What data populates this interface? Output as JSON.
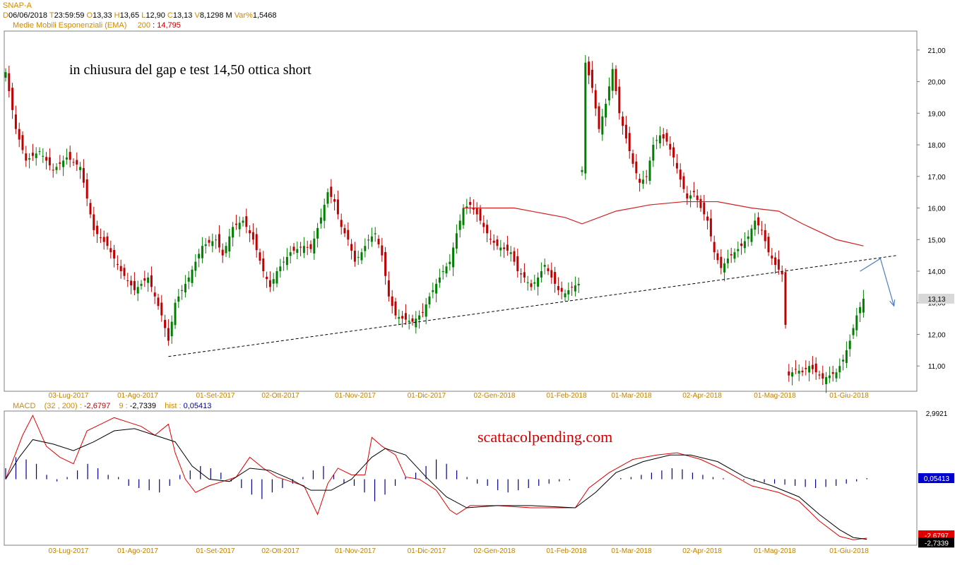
{
  "header": {
    "symbol": "SNAP-A",
    "d_label": "D",
    "date": "06/06/2018",
    "t_label": "T",
    "time": "23:59:59",
    "o_label": "O",
    "open": "13,33",
    "h_label": "H",
    "high": "13,65",
    "l_label": "L",
    "low": "12,90",
    "c_label": "C",
    "close": "13,13",
    "v_label": "V",
    "volume": "8,1298 M",
    "var_label": "Var%",
    "var": "1,5468",
    "ema_label": "Medie Mobili Esponenziali (EMA)",
    "ema_period": "200",
    "ema_value": "14,795"
  },
  "macd_header": {
    "label": "MACD",
    "params": "(32 , 200) :",
    "macd_value": "-2,6797",
    "signal_label": "9 :",
    "signal_value": "-2,7339",
    "hist_label": "hist :",
    "hist_value": "0,05413"
  },
  "annotations": {
    "main_text": "in chiusura del gap e test 14,50 ottica short",
    "watermark": "scattacolpending.com"
  },
  "colors": {
    "candle_up": "#008000",
    "candle_down": "#c00000",
    "ema": "#d02020",
    "macd_line": "#e00000",
    "signal_line": "#000000",
    "histogram": "#00008b",
    "trendline": "#000000",
    "arrow": "#4a7fc0",
    "axis_label": "#c08000"
  },
  "chart_data": [
    {
      "type": "candlestick",
      "title": "SNAP-A",
      "x_labels": [
        "03-Lug-2017",
        "01-Ago-2017",
        "01-Set-2017",
        "02-Ott-2017",
        "01-Nov-2017",
        "01-Dic-2017",
        "02-Gen-2018",
        "01-Feb-2018",
        "01-Mar-2018",
        "02-Apr-2018",
        "01-Mag-2018",
        "01-Giu-2018"
      ],
      "y_ticks": [
        "11,00",
        "12,00",
        "13,00",
        "14,00",
        "15,00",
        "16,00",
        "17,00",
        "18,00",
        "19,00",
        "20,00",
        "21,00"
      ],
      "ylim": [
        10.2,
        21.6
      ],
      "last_price_label": "13,13",
      "close_series": {
        "name": "close",
        "points": [
          [
            0,
            20.3
          ],
          [
            3,
            18.5
          ],
          [
            6,
            17.5
          ],
          [
            10,
            17.8
          ],
          [
            14,
            17.2
          ],
          [
            18,
            17.6
          ],
          [
            22,
            17.3
          ],
          [
            26,
            15.3
          ],
          [
            30,
            14.8
          ],
          [
            34,
            14.0
          ],
          [
            38,
            13.4
          ],
          [
            42,
            13.8
          ],
          [
            46,
            12.6
          ],
          [
            48,
            11.8
          ],
          [
            50,
            13.0
          ],
          [
            54,
            13.8
          ],
          [
            58,
            14.8
          ],
          [
            62,
            15.0
          ],
          [
            64,
            14.5
          ],
          [
            67,
            15.4
          ],
          [
            70,
            15.6
          ],
          [
            73,
            15.0
          ],
          [
            76,
            14.0
          ],
          [
            78,
            13.5
          ],
          [
            80,
            14.0
          ],
          [
            84,
            14.6
          ],
          [
            88,
            14.8
          ],
          [
            90,
            14.7
          ],
          [
            93,
            15.7
          ],
          [
            95,
            16.5
          ],
          [
            97,
            16.2
          ],
          [
            99,
            15.4
          ],
          [
            101,
            15.0
          ],
          [
            103,
            14.3
          ],
          [
            105,
            14.6
          ],
          [
            107,
            15.0
          ],
          [
            109,
            15.2
          ],
          [
            111,
            14.5
          ],
          [
            113,
            13.2
          ],
          [
            115,
            12.6
          ],
          [
            117,
            12.5
          ],
          [
            120,
            12.4
          ],
          [
            123,
            12.7
          ],
          [
            125,
            13.2
          ],
          [
            127,
            13.6
          ],
          [
            129,
            14.0
          ],
          [
            131,
            14.3
          ],
          [
            133,
            15.2
          ],
          [
            135,
            16.0
          ],
          [
            137,
            16.1
          ],
          [
            139,
            15.8
          ],
          [
            141,
            15.4
          ],
          [
            143,
            15.0
          ],
          [
            145,
            14.8
          ],
          [
            147,
            14.7
          ],
          [
            149,
            14.6
          ],
          [
            151,
            14.0
          ],
          [
            153,
            13.8
          ],
          [
            155,
            13.5
          ],
          [
            157,
            13.8
          ],
          [
            159,
            14.2
          ],
          [
            161,
            13.8
          ],
          [
            163,
            13.4
          ],
          [
            165,
            13.3
          ],
          [
            167,
            13.5
          ],
          [
            169,
            13.6
          ],
          [
            170,
            17.2
          ],
          [
            171,
            20.6
          ],
          [
            173,
            19.8
          ],
          [
            175,
            18.5
          ],
          [
            177,
            19.3
          ],
          [
            179,
            20.4
          ],
          [
            181,
            19.0
          ],
          [
            183,
            18.2
          ],
          [
            185,
            17.4
          ],
          [
            187,
            16.8
          ],
          [
            189,
            17.0
          ],
          [
            191,
            18.0
          ],
          [
            193,
            18.3
          ],
          [
            195,
            18.1
          ],
          [
            197,
            17.6
          ],
          [
            199,
            16.9
          ],
          [
            201,
            16.3
          ],
          [
            203,
            16.5
          ],
          [
            205,
            16.0
          ],
          [
            207,
            15.6
          ],
          [
            209,
            14.6
          ],
          [
            211,
            14.1
          ],
          [
            213,
            14.4
          ],
          [
            215,
            14.6
          ],
          [
            217,
            14.8
          ],
          [
            219,
            15.1
          ],
          [
            221,
            15.6
          ],
          [
            223,
            15.3
          ],
          [
            225,
            14.6
          ],
          [
            227,
            14.2
          ],
          [
            229,
            13.9
          ],
          [
            231,
            10.7
          ],
          [
            233,
            10.9
          ],
          [
            235,
            10.8
          ],
          [
            237,
            11.0
          ],
          [
            239,
            10.8
          ],
          [
            241,
            10.6
          ],
          [
            243,
            10.7
          ],
          [
            245,
            10.8
          ],
          [
            247,
            11.2
          ],
          [
            249,
            11.8
          ],
          [
            251,
            12.6
          ],
          [
            253,
            13.13
          ]
        ]
      },
      "ema_series": {
        "name": "EMA 200",
        "points": [
          [
            135,
            16.0
          ],
          [
            150,
            16.0
          ],
          [
            165,
            15.7
          ],
          [
            170,
            15.5
          ],
          [
            180,
            15.9
          ],
          [
            190,
            16.1
          ],
          [
            200,
            16.2
          ],
          [
            210,
            16.2
          ],
          [
            220,
            16.0
          ],
          [
            228,
            15.9
          ],
          [
            235,
            15.5
          ],
          [
            245,
            15.0
          ],
          [
            253,
            14.8
          ]
        ]
      },
      "trendline": {
        "from": [
          48,
          11.3
        ],
        "to": [
          263,
          14.5
        ]
      },
      "arrow": {
        "from": [
          256,
          14.4
        ],
        "peak": [
          258,
          14.4
        ],
        "to": [
          262,
          12.9
        ]
      }
    },
    {
      "type": "line",
      "title": "MACD",
      "y_ticks": [
        "2,9921"
      ],
      "value_labels": [
        "0,05413",
        "-2,6797",
        "-2,7339"
      ],
      "ylim": [
        -3.0,
        3.1
      ],
      "series": [
        {
          "name": "MACD",
          "points": [
            [
              0,
              0
            ],
            [
              5,
              2.0
            ],
            [
              8,
              2.9
            ],
            [
              12,
              1.5
            ],
            [
              16,
              1.0
            ],
            [
              20,
              0.7
            ],
            [
              24,
              2.2
            ],
            [
              28,
              2.5
            ],
            [
              32,
              2.8
            ],
            [
              36,
              2.6
            ],
            [
              40,
              2.4
            ],
            [
              44,
              2.0
            ],
            [
              48,
              2.5
            ],
            [
              50,
              1.2
            ],
            [
              53,
              0
            ],
            [
              56,
              -0.6
            ],
            [
              60,
              -0.3
            ],
            [
              64,
              -0.1
            ],
            [
              68,
              0.1
            ],
            [
              72,
              1.0
            ],
            [
              76,
              0.5
            ],
            [
              80,
              0.1
            ],
            [
              84,
              -0.1
            ],
            [
              88,
              -0.3
            ],
            [
              92,
              -1.6
            ],
            [
              95,
              -0.2
            ],
            [
              98,
              0.5
            ],
            [
              102,
              0.2
            ],
            [
              106,
              0.2
            ],
            [
              108,
              1.9
            ],
            [
              111,
              1.5
            ],
            [
              115,
              1.1
            ],
            [
              118,
              0.1
            ],
            [
              122,
              0
            ],
            [
              127,
              -0.5
            ],
            [
              131,
              -1.4
            ],
            [
              133,
              -1.6
            ],
            [
              137,
              -1.2
            ],
            [
              145,
              -1.2
            ],
            [
              155,
              -1.3
            ],
            [
              168,
              -1.3
            ],
            [
              172,
              -0.4
            ],
            [
              178,
              0.3
            ],
            [
              185,
              0.9
            ],
            [
              192,
              1.1
            ],
            [
              198,
              1.2
            ],
            [
              205,
              0.9
            ],
            [
              212,
              0.4
            ],
            [
              220,
              -0.3
            ],
            [
              228,
              -0.6
            ],
            [
              234,
              -1.0
            ],
            [
              240,
              -1.9
            ],
            [
              246,
              -2.6
            ],
            [
              250,
              -2.75
            ],
            [
              254,
              -2.68
            ]
          ]
        },
        {
          "name": "Signal",
          "points": [
            [
              0,
              0
            ],
            [
              4,
              1.0
            ],
            [
              8,
              1.8
            ],
            [
              14,
              1.6
            ],
            [
              20,
              1.3
            ],
            [
              26,
              1.7
            ],
            [
              32,
              2.2
            ],
            [
              38,
              2.3
            ],
            [
              44,
              2.0
            ],
            [
              50,
              1.7
            ],
            [
              55,
              0.6
            ],
            [
              60,
              0
            ],
            [
              66,
              -0.1
            ],
            [
              72,
              0.5
            ],
            [
              78,
              0.4
            ],
            [
              84,
              0
            ],
            [
              90,
              -0.5
            ],
            [
              96,
              -0.5
            ],
            [
              102,
              0
            ],
            [
              108,
              1.0
            ],
            [
              112,
              1.4
            ],
            [
              118,
              1.1
            ],
            [
              124,
              0.1
            ],
            [
              130,
              -0.8
            ],
            [
              136,
              -1.3
            ],
            [
              145,
              -1.2
            ],
            [
              155,
              -1.2
            ],
            [
              168,
              -1.3
            ],
            [
              174,
              -0.6
            ],
            [
              180,
              0.3
            ],
            [
              188,
              0.8
            ],
            [
              196,
              1.1
            ],
            [
              202,
              1.1
            ],
            [
              210,
              0.8
            ],
            [
              218,
              0.1
            ],
            [
              226,
              -0.3
            ],
            [
              234,
              -0.8
            ],
            [
              240,
              -1.6
            ],
            [
              246,
              -2.3
            ],
            [
              250,
              -2.65
            ],
            [
              254,
              -2.73
            ]
          ]
        }
      ],
      "histogram": [
        0.5,
        1.0,
        0.9,
        0.7,
        0.2,
        -0.1,
        0.1,
        0.4,
        0.7,
        0.5,
        0.2,
        0.1,
        -0.3,
        -0.4,
        -0.5,
        -0.6,
        -0.3,
        0.2,
        0.4,
        0.6,
        0.5,
        0.3,
        -0.1,
        -0.4,
        -0.7,
        -0.9,
        -0.6,
        -0.4,
        -0.2,
        0.1,
        0.4,
        0.6,
        0.2,
        -0.2,
        -0.3,
        -0.6,
        -1.0,
        -0.7,
        -0.3,
        0.1,
        0.3,
        0.6,
        0.9,
        0.7,
        0.4,
        0.1,
        -0.2,
        -0.3,
        -0.5,
        -0.6,
        -0.5,
        -0.4,
        -0.3,
        -0.2,
        -0.1,
        -0.05,
        0,
        0,
        0,
        0,
        0.05,
        0.1,
        0.2,
        0.3,
        0.4,
        0.5,
        0.45,
        0.3,
        0.2,
        0.1,
        0.05,
        0,
        -0.05,
        -0.1,
        -0.15,
        -0.2,
        -0.25,
        -0.3,
        -0.35,
        -0.4,
        -0.35,
        -0.3,
        -0.2,
        -0.1,
        0.05
      ]
    }
  ]
}
